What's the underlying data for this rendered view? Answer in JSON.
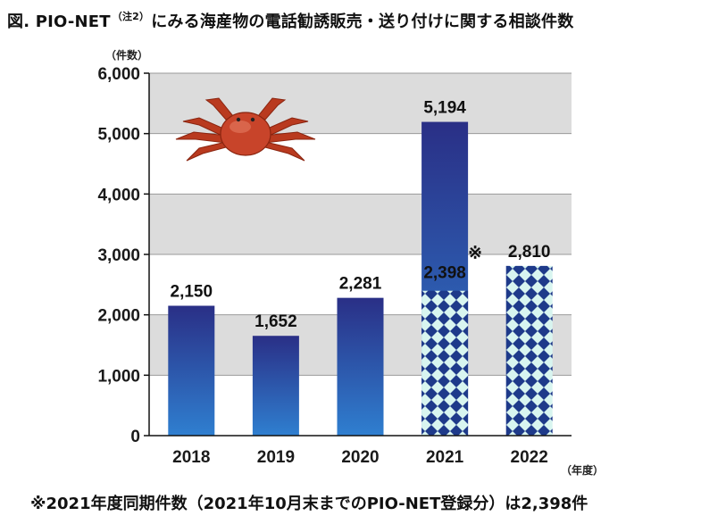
{
  "title": {
    "prefix": "図.  PIO-NET",
    "note": "（注2）",
    "suffix": "にみる海産物の電話勧誘販売・送り付けに関する相談件数"
  },
  "footnote": "※2021年度同期件数（2021年10月末までのPIO-NET登録分）は2,398件",
  "colors": {
    "bar_top": "#2a2f86",
    "bar_bottom": "#2f7fd0",
    "pattern_a": "#1e3a8a",
    "pattern_b": "#d8f5f0",
    "band_gray": "#dcdcdc"
  },
  "icon": "crab-icon",
  "chart_data": {
    "type": "bar",
    "title": "",
    "xlabel": "（年度）",
    "ylabel": "（件数）",
    "ylim": [
      0,
      6000
    ],
    "yticks": [
      0,
      1000,
      2000,
      3000,
      4000,
      5000,
      6000
    ],
    "ytick_labels": [
      "0",
      "1,000",
      "2,000",
      "3,000",
      "4,000",
      "5,000",
      "6,000"
    ],
    "categories": [
      "2018",
      "2019",
      "2020",
      "2021",
      "2022"
    ],
    "values": [
      2150,
      1652,
      2281,
      5194,
      2810
    ],
    "value_labels": [
      "2,150",
      "1,652",
      "2,281",
      "5,194",
      "2,810"
    ],
    "same_period": {
      "category": "2021",
      "value": 2398,
      "label": "2,398",
      "marker": "※"
    },
    "patterned": [
      "2022"
    ],
    "grid": true,
    "legend": "none"
  }
}
